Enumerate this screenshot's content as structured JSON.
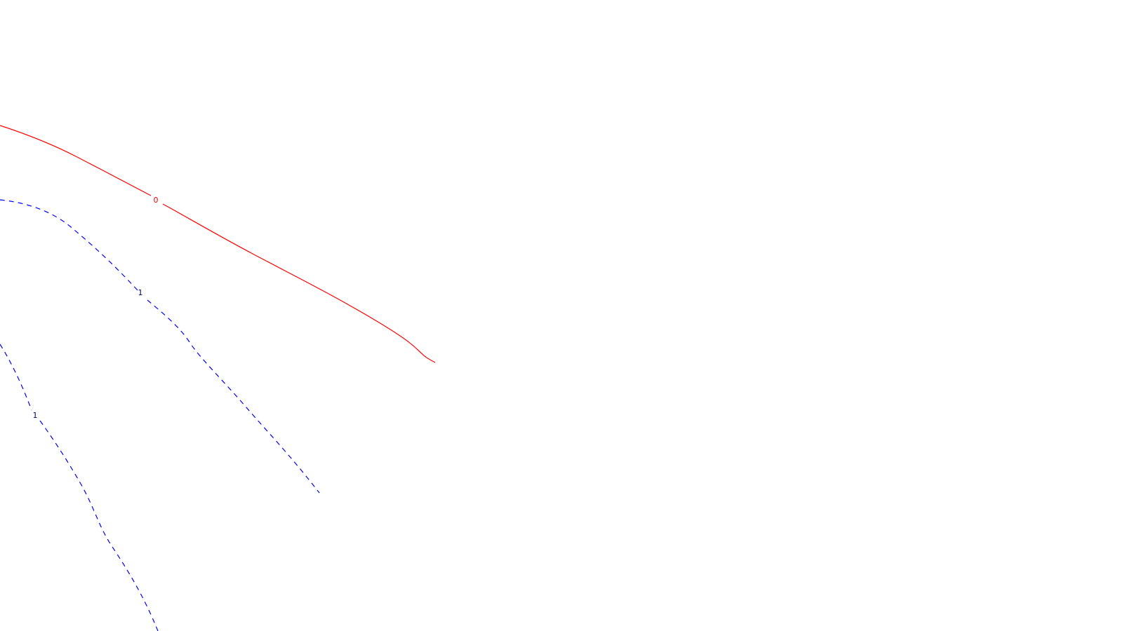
{
  "map": {
    "background": "#ffffff",
    "contours": [
      {
        "id": "zero",
        "label": "0",
        "color": "#ff0000",
        "style": "solid"
      },
      {
        "id": "one-a",
        "label": "1",
        "color": "#0000ff",
        "style": "dashed"
      },
      {
        "id": "one-b",
        "label": "1",
        "color": "#0000ff",
        "style": "dashed"
      }
    ],
    "label_color_positive": "#000066"
  }
}
